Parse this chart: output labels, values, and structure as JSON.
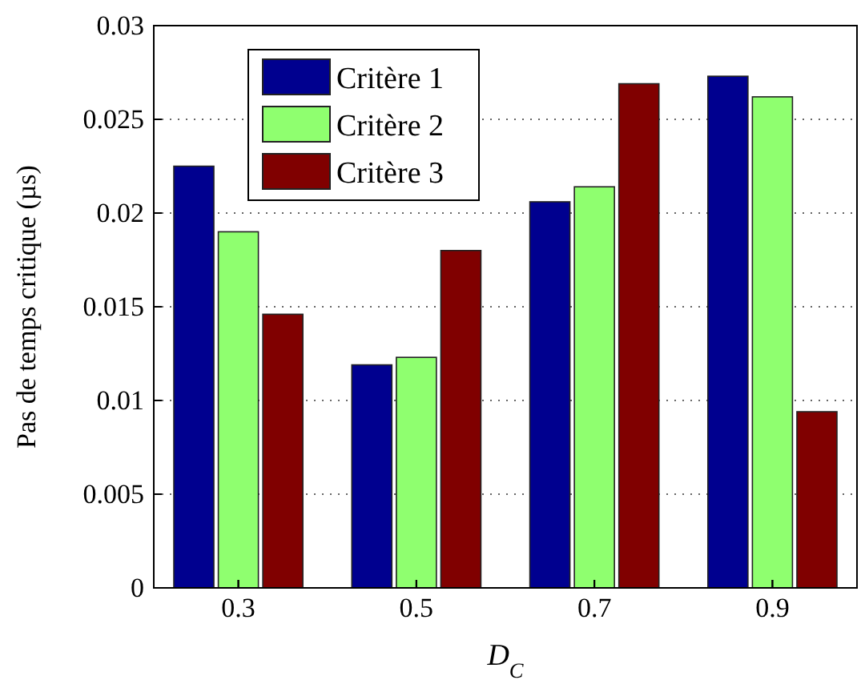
{
  "chart_data": {
    "type": "bar",
    "xlabel": "D$_{C}$",
    "ylabel": "Pas de temps critique (µs)",
    "categories": [
      "0.3",
      "0.5",
      "0.7",
      "0.9"
    ],
    "series": [
      {
        "name": "Critère 1",
        "color": "#00008f",
        "values": [
          0.0225,
          0.0119,
          0.0206,
          0.0273
        ]
      },
      {
        "name": "Critère 2",
        "color": "#8fff6f",
        "values": [
          0.019,
          0.0123,
          0.0214,
          0.0262
        ]
      },
      {
        "name": "Critère 3",
        "color": "#800000",
        "values": [
          0.0146,
          0.018,
          0.0269,
          0.0094
        ]
      }
    ],
    "ylim": [
      0,
      0.03
    ],
    "yticks": [
      0,
      0.005,
      0.01,
      0.015,
      0.02,
      0.025,
      0.03
    ],
    "grid": "y",
    "legend": "top left"
  }
}
